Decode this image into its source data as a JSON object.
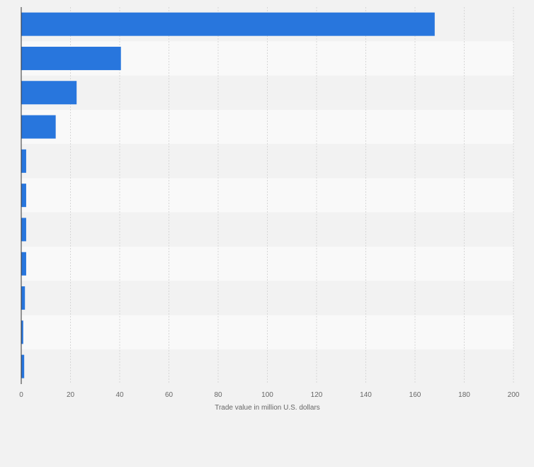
{
  "chart_data": {
    "type": "bar",
    "orientation": "horizontal",
    "title": "",
    "categories": [
      "",
      "",
      "",
      "",
      "",
      "",
      "",
      "",
      "",
      "",
      ""
    ],
    "values": [
      168,
      40.5,
      22.5,
      14,
      2,
      2,
      2,
      2,
      1.5,
      0.8,
      1.2
    ],
    "xlabel": "Trade value in million U.S. dollars",
    "ylabel": "",
    "xlim": [
      0,
      200
    ],
    "xticks": [
      "0",
      "20",
      "40",
      "60",
      "80",
      "100",
      "120",
      "140",
      "160",
      "180",
      "200"
    ],
    "grid": true,
    "legend": "none",
    "colors": {
      "bar": "#2876dd",
      "band_light": "#f9f9f9",
      "band_dark": "#f2f2f2",
      "gridline": "#d6d6d6",
      "axis": "#333333",
      "background": "#f2f2f2"
    }
  }
}
